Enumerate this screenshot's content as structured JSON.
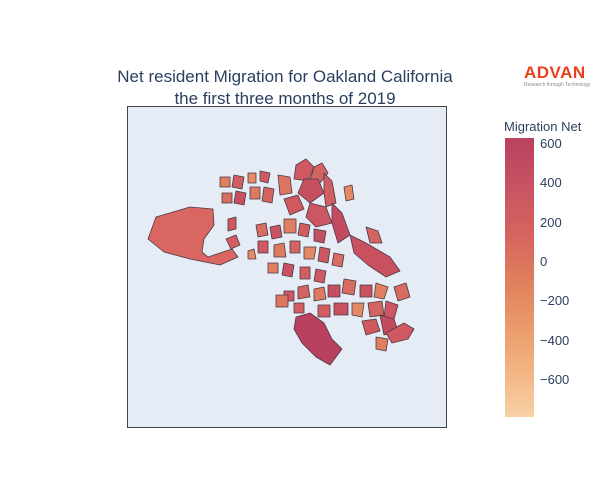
{
  "title": {
    "line1": "Net resident Migration for Oakland California",
    "line2": "the first three months of 2019"
  },
  "logo": {
    "name": "ADVAN",
    "tagline": "Research through Technology",
    "color": "#e8401c"
  },
  "colorbar": {
    "title": "Migration Net",
    "ticks": [
      "600",
      "400",
      "200",
      "0",
      "−200",
      "−400",
      "−600"
    ],
    "range": [
      -780,
      650
    ],
    "colorscale": [
      "#f7d2a6",
      "#ec9e6e",
      "#e0805d",
      "#d5635f",
      "#c75562",
      "#b9415f"
    ]
  },
  "map": {
    "background": "#e5ecf6",
    "region": "Oakland, California"
  }
}
